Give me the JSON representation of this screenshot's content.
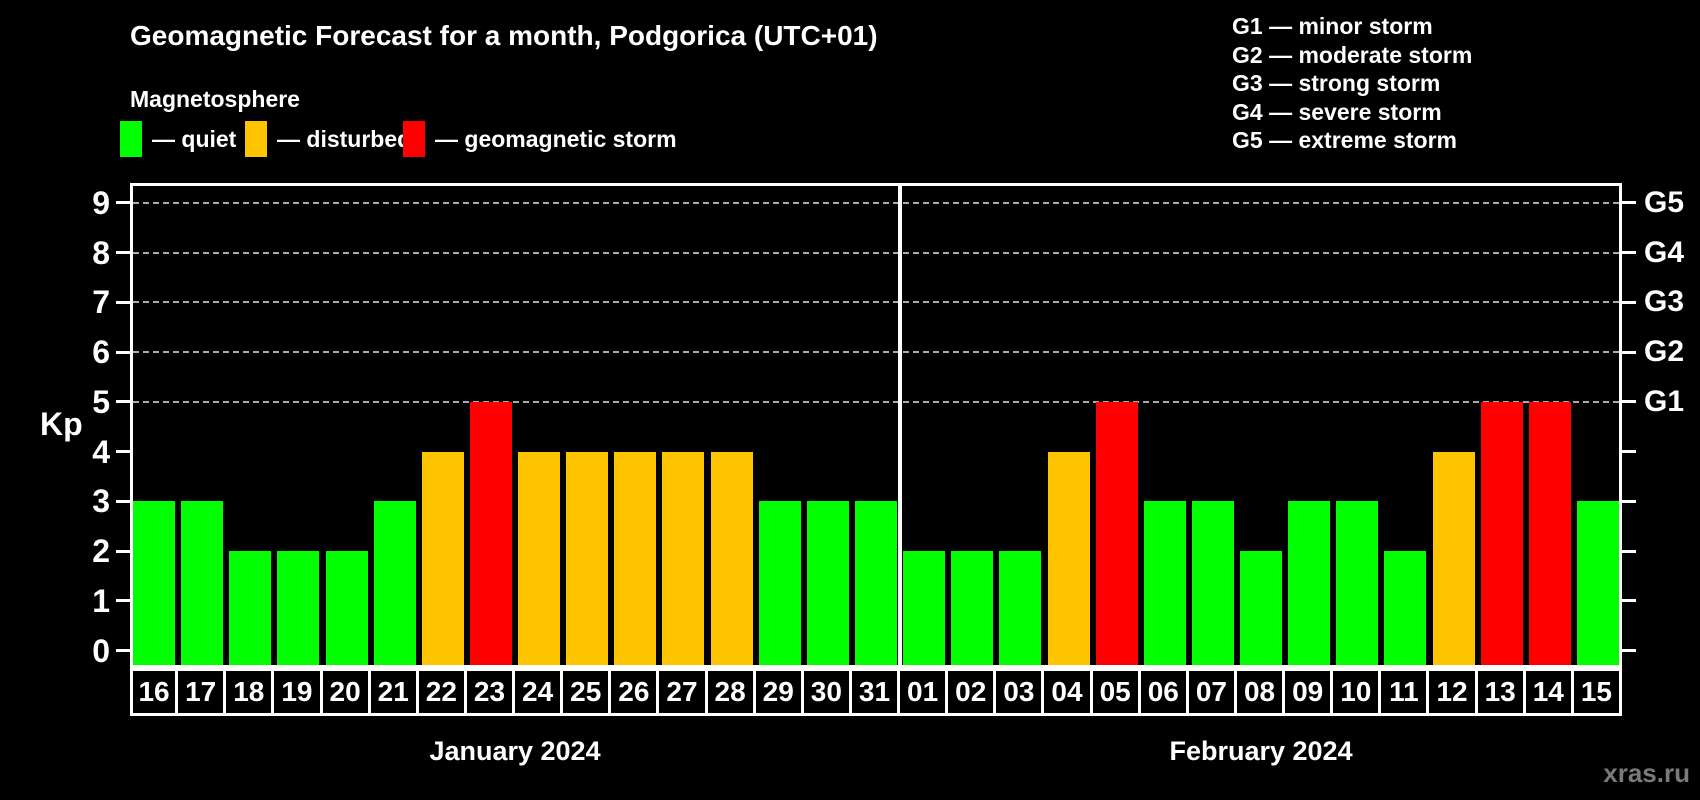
{
  "header": {
    "title": "Geomagnetic Forecast for a month, Podgorica (UTC+01)",
    "subtitle": "Magnetosphere",
    "watermark": "xras.ru"
  },
  "legend": {
    "items": [
      {
        "key": "quiet",
        "label": "— quiet",
        "color": "#00ff00"
      },
      {
        "key": "disturbed",
        "label": "— disturbed",
        "color": "#ffc400"
      },
      {
        "key": "storm",
        "label": "— geomagnetic storm",
        "color": "#ff0000"
      }
    ]
  },
  "storm_scale_legend": [
    "G1 — minor storm",
    "G2 — moderate storm",
    "G3 — strong storm",
    "G4 — severe storm",
    "G5 — extreme storm"
  ],
  "chart_data": {
    "type": "bar",
    "title": "Geomagnetic Forecast for a month, Podgorica (UTC+01)",
    "ylabel": "Kp",
    "ylim": [
      0,
      9
    ],
    "yticks": [
      0,
      1,
      2,
      3,
      4,
      5,
      6,
      7,
      8,
      9
    ],
    "gridline_levels": [
      5,
      6,
      7,
      8,
      9
    ],
    "grid": "dashed",
    "legend_position": "top",
    "right_axis_labels": [
      {
        "kp": 5,
        "label": "G1"
      },
      {
        "kp": 6,
        "label": "G2"
      },
      {
        "kp": 7,
        "label": "G3"
      },
      {
        "kp": 8,
        "label": "G4"
      },
      {
        "kp": 9,
        "label": "G5"
      }
    ],
    "months": [
      {
        "label": "January 2024",
        "days": [
          {
            "d": "16",
            "kp": 3,
            "status": "quiet"
          },
          {
            "d": "17",
            "kp": 3,
            "status": "quiet"
          },
          {
            "d": "18",
            "kp": 2,
            "status": "quiet"
          },
          {
            "d": "19",
            "kp": 2,
            "status": "quiet"
          },
          {
            "d": "20",
            "kp": 2,
            "status": "quiet"
          },
          {
            "d": "21",
            "kp": 3,
            "status": "quiet"
          },
          {
            "d": "22",
            "kp": 4,
            "status": "disturbed"
          },
          {
            "d": "23",
            "kp": 5,
            "status": "storm"
          },
          {
            "d": "24",
            "kp": 4,
            "status": "disturbed"
          },
          {
            "d": "25",
            "kp": 4,
            "status": "disturbed"
          },
          {
            "d": "26",
            "kp": 4,
            "status": "disturbed"
          },
          {
            "d": "27",
            "kp": 4,
            "status": "disturbed"
          },
          {
            "d": "28",
            "kp": 4,
            "status": "disturbed"
          },
          {
            "d": "29",
            "kp": 3,
            "status": "quiet"
          },
          {
            "d": "30",
            "kp": 3,
            "status": "quiet"
          },
          {
            "d": "31",
            "kp": 3,
            "status": "quiet"
          }
        ]
      },
      {
        "label": "February 2024",
        "days": [
          {
            "d": "01",
            "kp": 2,
            "status": "quiet"
          },
          {
            "d": "02",
            "kp": 2,
            "status": "quiet"
          },
          {
            "d": "03",
            "kp": 2,
            "status": "quiet"
          },
          {
            "d": "04",
            "kp": 4,
            "status": "disturbed"
          },
          {
            "d": "05",
            "kp": 5,
            "status": "storm"
          },
          {
            "d": "06",
            "kp": 3,
            "status": "quiet"
          },
          {
            "d": "07",
            "kp": 3,
            "status": "quiet"
          },
          {
            "d": "08",
            "kp": 2,
            "status": "quiet"
          },
          {
            "d": "09",
            "kp": 3,
            "status": "quiet"
          },
          {
            "d": "10",
            "kp": 3,
            "status": "quiet"
          },
          {
            "d": "11",
            "kp": 2,
            "status": "quiet"
          },
          {
            "d": "12",
            "kp": 4,
            "status": "disturbed"
          },
          {
            "d": "13",
            "kp": 5,
            "status": "storm"
          },
          {
            "d": "14",
            "kp": 5,
            "status": "storm"
          },
          {
            "d": "15",
            "kp": 3,
            "status": "quiet"
          }
        ]
      }
    ]
  },
  "colors": {
    "background": "#000000",
    "text": "#ffffff",
    "grid": "#aaaaaa",
    "watermark": "#7a7a7a",
    "quiet": "#00ff00",
    "disturbed": "#ffc400",
    "storm": "#ff0000"
  }
}
